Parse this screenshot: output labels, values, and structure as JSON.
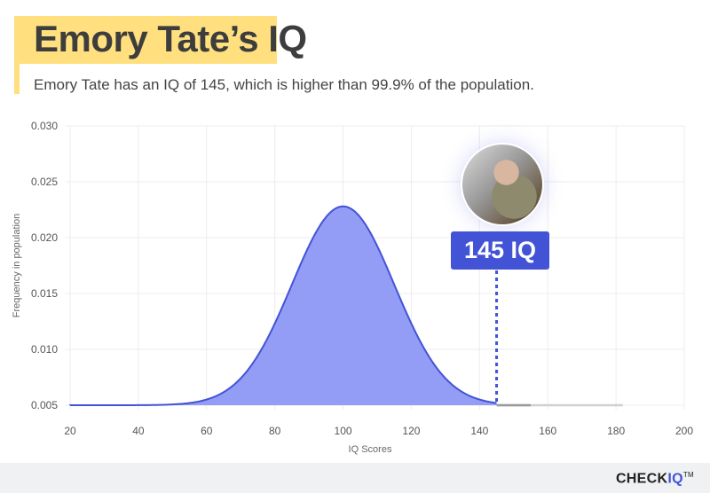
{
  "header": {
    "title": "Emory Tate’s IQ",
    "subtitle": "Emory Tate has an IQ of 145, which is higher than 99.9% of the population."
  },
  "chart_data": {
    "type": "area",
    "xlabel": "IQ Scores",
    "ylabel": "Frequency in population",
    "xlim": [
      20,
      200
    ],
    "ylim": [
      0.005,
      0.03
    ],
    "xticks": [
      "20",
      "40",
      "60",
      "80",
      "100",
      "120",
      "140",
      "160",
      "180",
      "200"
    ],
    "yticks": [
      "0.005",
      "0.010",
      "0.015",
      "0.020",
      "0.025",
      "0.030"
    ],
    "distribution": {
      "mean": 100,
      "sd": 15,
      "baseline": 0.005,
      "peak": 0.0228
    },
    "highlight": {
      "score": 145,
      "label": "145 IQ"
    },
    "grid": true,
    "colors": {
      "fill": "#939df5",
      "line": "#4353d6",
      "marker": "#4353d6"
    }
  },
  "footer": {
    "logo_check": "CHECK",
    "logo_iq": "IQ",
    "logo_tm": "TM"
  }
}
